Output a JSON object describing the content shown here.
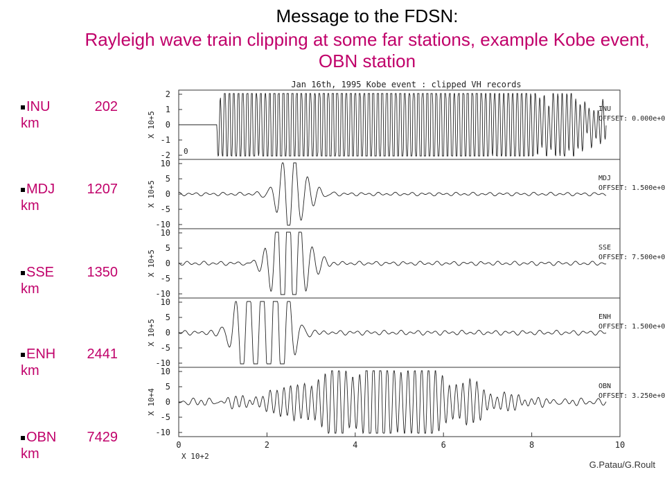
{
  "header": {
    "title": "Message to the FDSN:",
    "subtitle": "Rayleigh wave train clipping at some far stations, example Kobe event, OBN station"
  },
  "stations": [
    {
      "code": "INU",
      "distance": "202",
      "unit": "km"
    },
    {
      "code": "MDJ",
      "distance": "1207",
      "unit": "km"
    },
    {
      "code": "SSE",
      "distance": "1350",
      "unit": "km"
    },
    {
      "code": "ENH",
      "distance": "2441",
      "unit": "km"
    },
    {
      "code": "OBN",
      "distance": "7429",
      "unit": "km"
    }
  ],
  "figure": {
    "title": "Jan 16th, 1995 Kobe event : clipped VH records",
    "panels": [
      {
        "station": "INU",
        "offset": "OFFSET:  0.000e+0",
        "multiplier": "X 10+5",
        "yticks": [
          "2",
          "1",
          "0",
          "-1",
          "-2"
        ],
        "note": "0"
      },
      {
        "station": "MDJ",
        "offset": "OFFSET:  1.500e+0",
        "multiplier": "X 10+5",
        "yticks": [
          "10",
          "5",
          "0",
          "-5",
          "-10"
        ]
      },
      {
        "station": "SSE",
        "offset": "OFFSET:  7.500e+0",
        "multiplier": "X 10+5",
        "yticks": [
          "10",
          "5",
          "0",
          "-5",
          "-10"
        ]
      },
      {
        "station": "ENH",
        "offset": "OFFSET:  1.500e+0",
        "multiplier": "X 10+5",
        "yticks": [
          "10",
          "5",
          "0",
          "-5",
          "-10"
        ]
      },
      {
        "station": "OBN",
        "offset": "OFFSET:  3.250e+0",
        "multiplier": "X 10+4",
        "yticks": [
          "10",
          "5",
          "0",
          "-5",
          "-10"
        ]
      }
    ],
    "xticks": [
      "0",
      "2",
      "4",
      "6",
      "8",
      "10"
    ],
    "xmultiplier": "X 10+2"
  },
  "credit": "G.Patau/G.Roult"
}
